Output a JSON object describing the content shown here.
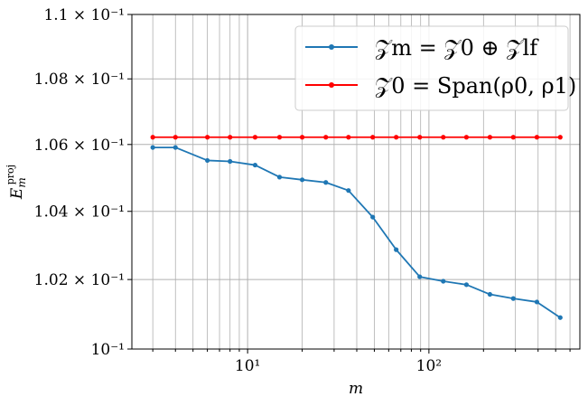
{
  "chart_data": {
    "type": "line",
    "xscale": "log",
    "yscale": "log",
    "xlim": [
      2.3,
      680
    ],
    "ylim": [
      0.1,
      0.11
    ],
    "xlabel": "m",
    "ylabel": "E_m^proj",
    "grid": true,
    "grid_minor_x": true,
    "legend_placement": "top-right",
    "x_ticks": [
      {
        "value": 10,
        "label": "10¹"
      },
      {
        "value": 100,
        "label": "10²"
      }
    ],
    "y_ticks": [
      {
        "value": 0.1,
        "label": "10⁻¹"
      },
      {
        "value": 0.102,
        "label": "1.02 × 10⁻¹"
      },
      {
        "value": 0.104,
        "label": "1.04 × 10⁻¹"
      },
      {
        "value": 0.106,
        "label": "1.06 × 10⁻¹"
      },
      {
        "value": 0.108,
        "label": "1.08 × 10⁻¹"
      },
      {
        "value": 0.11,
        "label": "1.1 × 10⁻¹"
      }
    ],
    "series": [
      {
        "name": "𝒵m = 𝒵0 ⊕ 𝒵lf",
        "color": "#1f77b4",
        "x": [
          3,
          4,
          6,
          8,
          11,
          15,
          20,
          27,
          36,
          49,
          66,
          89,
          120,
          161,
          217,
          292,
          394,
          530
        ],
        "y": [
          0.10591,
          0.10591,
          0.10552,
          0.10549,
          0.10538,
          0.10502,
          0.10494,
          0.10486,
          0.10462,
          0.10383,
          0.10287,
          0.10208,
          0.10195,
          0.10185,
          0.10157,
          0.10145,
          0.10135,
          0.1009
        ]
      },
      {
        "name": "𝒵0 = Span(ρ0, ρ1)",
        "color": "#ff0000",
        "x": [
          3,
          4,
          6,
          8,
          11,
          15,
          20,
          27,
          36,
          49,
          66,
          89,
          120,
          161,
          217,
          292,
          394,
          530
        ],
        "y": [
          0.10622,
          0.10622,
          0.10622,
          0.10622,
          0.10622,
          0.10622,
          0.10622,
          0.10622,
          0.10622,
          0.10622,
          0.10622,
          0.10622,
          0.10622,
          0.10622,
          0.10622,
          0.10622,
          0.10622,
          0.10622
        ]
      }
    ]
  }
}
